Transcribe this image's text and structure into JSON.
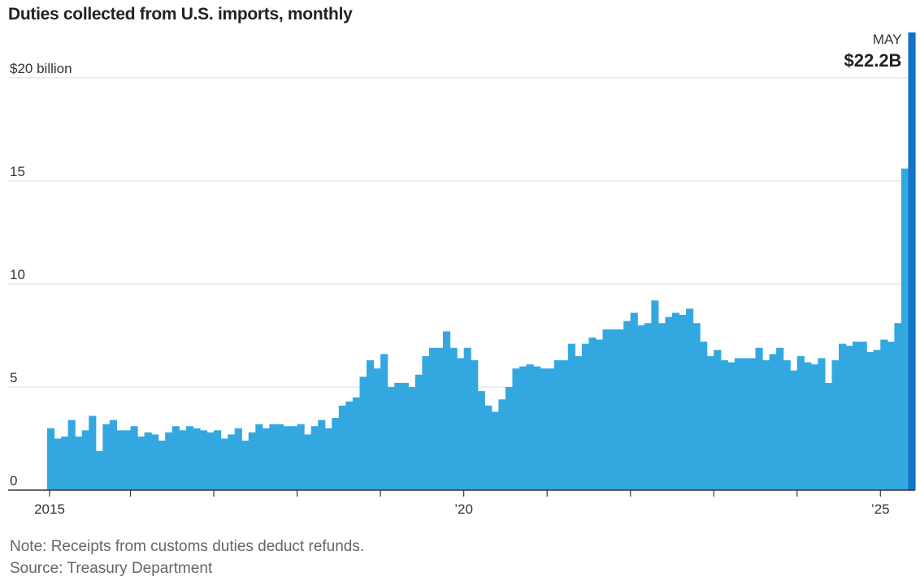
{
  "title": "Duties collected from U.S. imports, monthly",
  "note": "Note: Receipts from customs duties deduct refunds.",
  "source": "Source: Treasury Department",
  "colors": {
    "bar": "#33a8e0",
    "highlight": "#1373c8",
    "grid": "#dddddd",
    "axis": "#333333"
  },
  "chart_data": {
    "type": "bar",
    "title": "Duties collected from U.S. imports, monthly",
    "ylabel": "$ billion",
    "ylim": [
      0,
      22.2
    ],
    "yticks": [
      {
        "value": 0,
        "label": "0"
      },
      {
        "value": 5,
        "label": "5"
      },
      {
        "value": 10,
        "label": "10"
      },
      {
        "value": 15,
        "label": "15"
      },
      {
        "value": 20,
        "label": "$20 billion"
      }
    ],
    "xticks": [
      {
        "year": 2015,
        "label": "2015"
      },
      {
        "year": 2016,
        "label": ""
      },
      {
        "year": 2017,
        "label": ""
      },
      {
        "year": 2018,
        "label": ""
      },
      {
        "year": 2019,
        "label": ""
      },
      {
        "year": 2020,
        "label": "’20"
      },
      {
        "year": 2021,
        "label": ""
      },
      {
        "year": 2022,
        "label": ""
      },
      {
        "year": 2023,
        "label": ""
      },
      {
        "year": 2024,
        "label": ""
      },
      {
        "year": 2025,
        "label": "’25"
      }
    ],
    "start": "2015-01",
    "end": "2025-05",
    "values": [
      3.0,
      2.5,
      2.6,
      3.4,
      2.6,
      2.9,
      3.6,
      1.9,
      3.2,
      3.4,
      2.9,
      2.9,
      3.1,
      2.6,
      2.8,
      2.7,
      2.4,
      2.8,
      3.1,
      2.9,
      3.1,
      3.0,
      2.9,
      2.8,
      2.9,
      2.5,
      2.7,
      3.0,
      2.4,
      2.8,
      3.2,
      3.0,
      3.2,
      3.2,
      3.1,
      3.1,
      3.2,
      2.7,
      3.1,
      3.4,
      3.0,
      3.5,
      4.1,
      4.3,
      4.5,
      5.5,
      6.3,
      5.9,
      6.6,
      5.0,
      5.2,
      5.2,
      5.0,
      5.6,
      6.5,
      6.9,
      6.9,
      7.7,
      6.9,
      6.4,
      6.9,
      6.3,
      4.8,
      4.1,
      3.8,
      4.4,
      5.0,
      5.9,
      6.0,
      6.1,
      6.0,
      5.9,
      5.9,
      6.3,
      6.3,
      7.1,
      6.5,
      7.1,
      7.4,
      7.3,
      7.8,
      7.8,
      7.8,
      8.2,
      8.6,
      8.0,
      8.1,
      9.2,
      8.1,
      8.4,
      8.6,
      8.5,
      8.8,
      8.1,
      7.2,
      6.5,
      6.8,
      6.3,
      6.2,
      6.4,
      6.4,
      6.4,
      6.9,
      6.3,
      6.6,
      6.9,
      6.3,
      5.8,
      6.5,
      6.2,
      6.1,
      6.4,
      5.2,
      6.3,
      7.1,
      7.0,
      7.2,
      7.2,
      6.7,
      6.8,
      7.3,
      7.2,
      8.1,
      15.6,
      22.2
    ],
    "annotation": {
      "month": "MAY",
      "value": "$22.2B"
    },
    "highlight_index": 124
  }
}
